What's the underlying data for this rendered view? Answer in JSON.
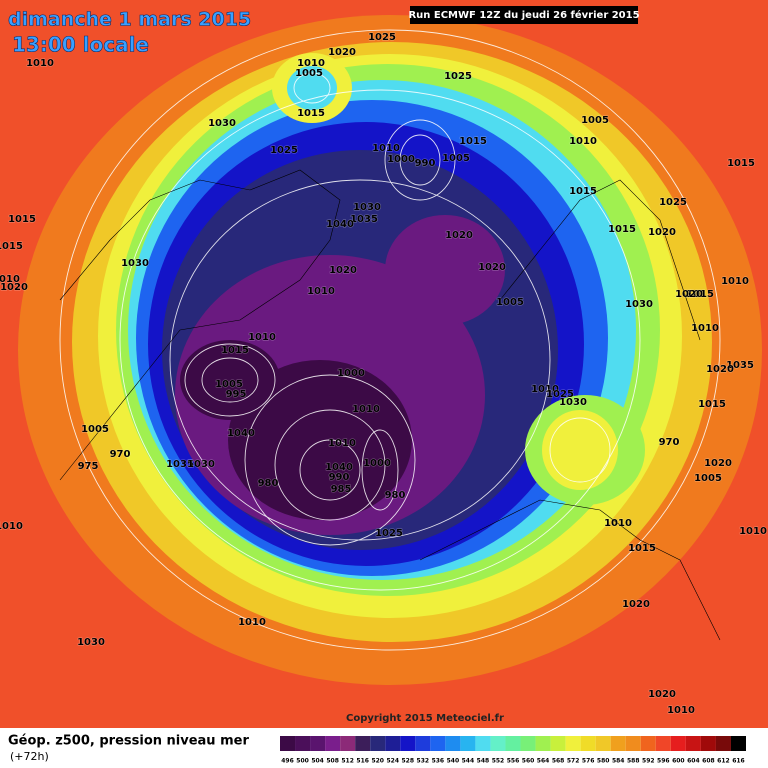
{
  "header": {
    "date": "dimanche 1 mars 2015",
    "time": "13:00 locale",
    "run": "Run ECMWF 12Z du jeudi 26 février 2015"
  },
  "isobar_labels": [
    "1010",
    "1020",
    "1025",
    "1010",
    "1005",
    "1015",
    "1025",
    "1030",
    "1025",
    "1010",
    "1000",
    "990",
    "1005",
    "1015",
    "1005",
    "1010",
    "1015",
    "1015",
    "1025",
    "1015",
    "1015",
    "1030",
    "1030",
    "1035",
    "1040",
    "1020",
    "1020",
    "1015",
    "1020",
    "1020",
    "1010",
    "1005",
    "1030",
    "1015",
    "1010",
    "1010",
    "1010",
    "1015",
    "1005",
    "995",
    "1000",
    "1010",
    "1025",
    "1030",
    "1035",
    "1020",
    "1015",
    "1010",
    "1005",
    "1040",
    "1010",
    "1000",
    "970",
    "1040",
    "990",
    "985",
    "980",
    "980",
    "975",
    "1035",
    "1030",
    "1025",
    "970",
    "1020",
    "1005",
    "1010",
    "1015",
    "1010",
    "1010",
    "1020",
    "1010",
    "1030",
    "1020",
    "1010",
    "1010",
    "1020",
    "1020"
  ],
  "footer": {
    "copyright": "Copyright 2015 Meteociel.fr",
    "product": "Géop. z500, pression niveau mer",
    "lead": "(+72h)"
  },
  "colorbar": {
    "values": [
      496,
      500,
      504,
      508,
      512,
      516,
      520,
      524,
      528,
      532,
      536,
      540,
      544,
      548,
      552,
      556,
      560,
      564,
      568,
      572,
      576,
      580,
      584,
      588,
      592,
      596,
      600,
      604,
      608,
      612,
      616
    ],
    "colors": [
      "#3c0a46",
      "#4b0f5a",
      "#5a146e",
      "#7a1e8c",
      "#8c2a78",
      "#3c1e5a",
      "#28287a",
      "#1e1e96",
      "#1414c8",
      "#1e3cdc",
      "#1e64f0",
      "#1e8cf0",
      "#28b4f0",
      "#50dcf0",
      "#64f0c8",
      "#64f0a0",
      "#78f078",
      "#a0f050",
      "#c8f03c",
      "#f0f03c",
      "#f0dc28",
      "#f0c828",
      "#f0a01e",
      "#f08c1e",
      "#f0641e",
      "#f04628",
      "#e61e1e",
      "#c81414",
      "#a00a0a",
      "#780a0a",
      "#000000"
    ]
  }
}
